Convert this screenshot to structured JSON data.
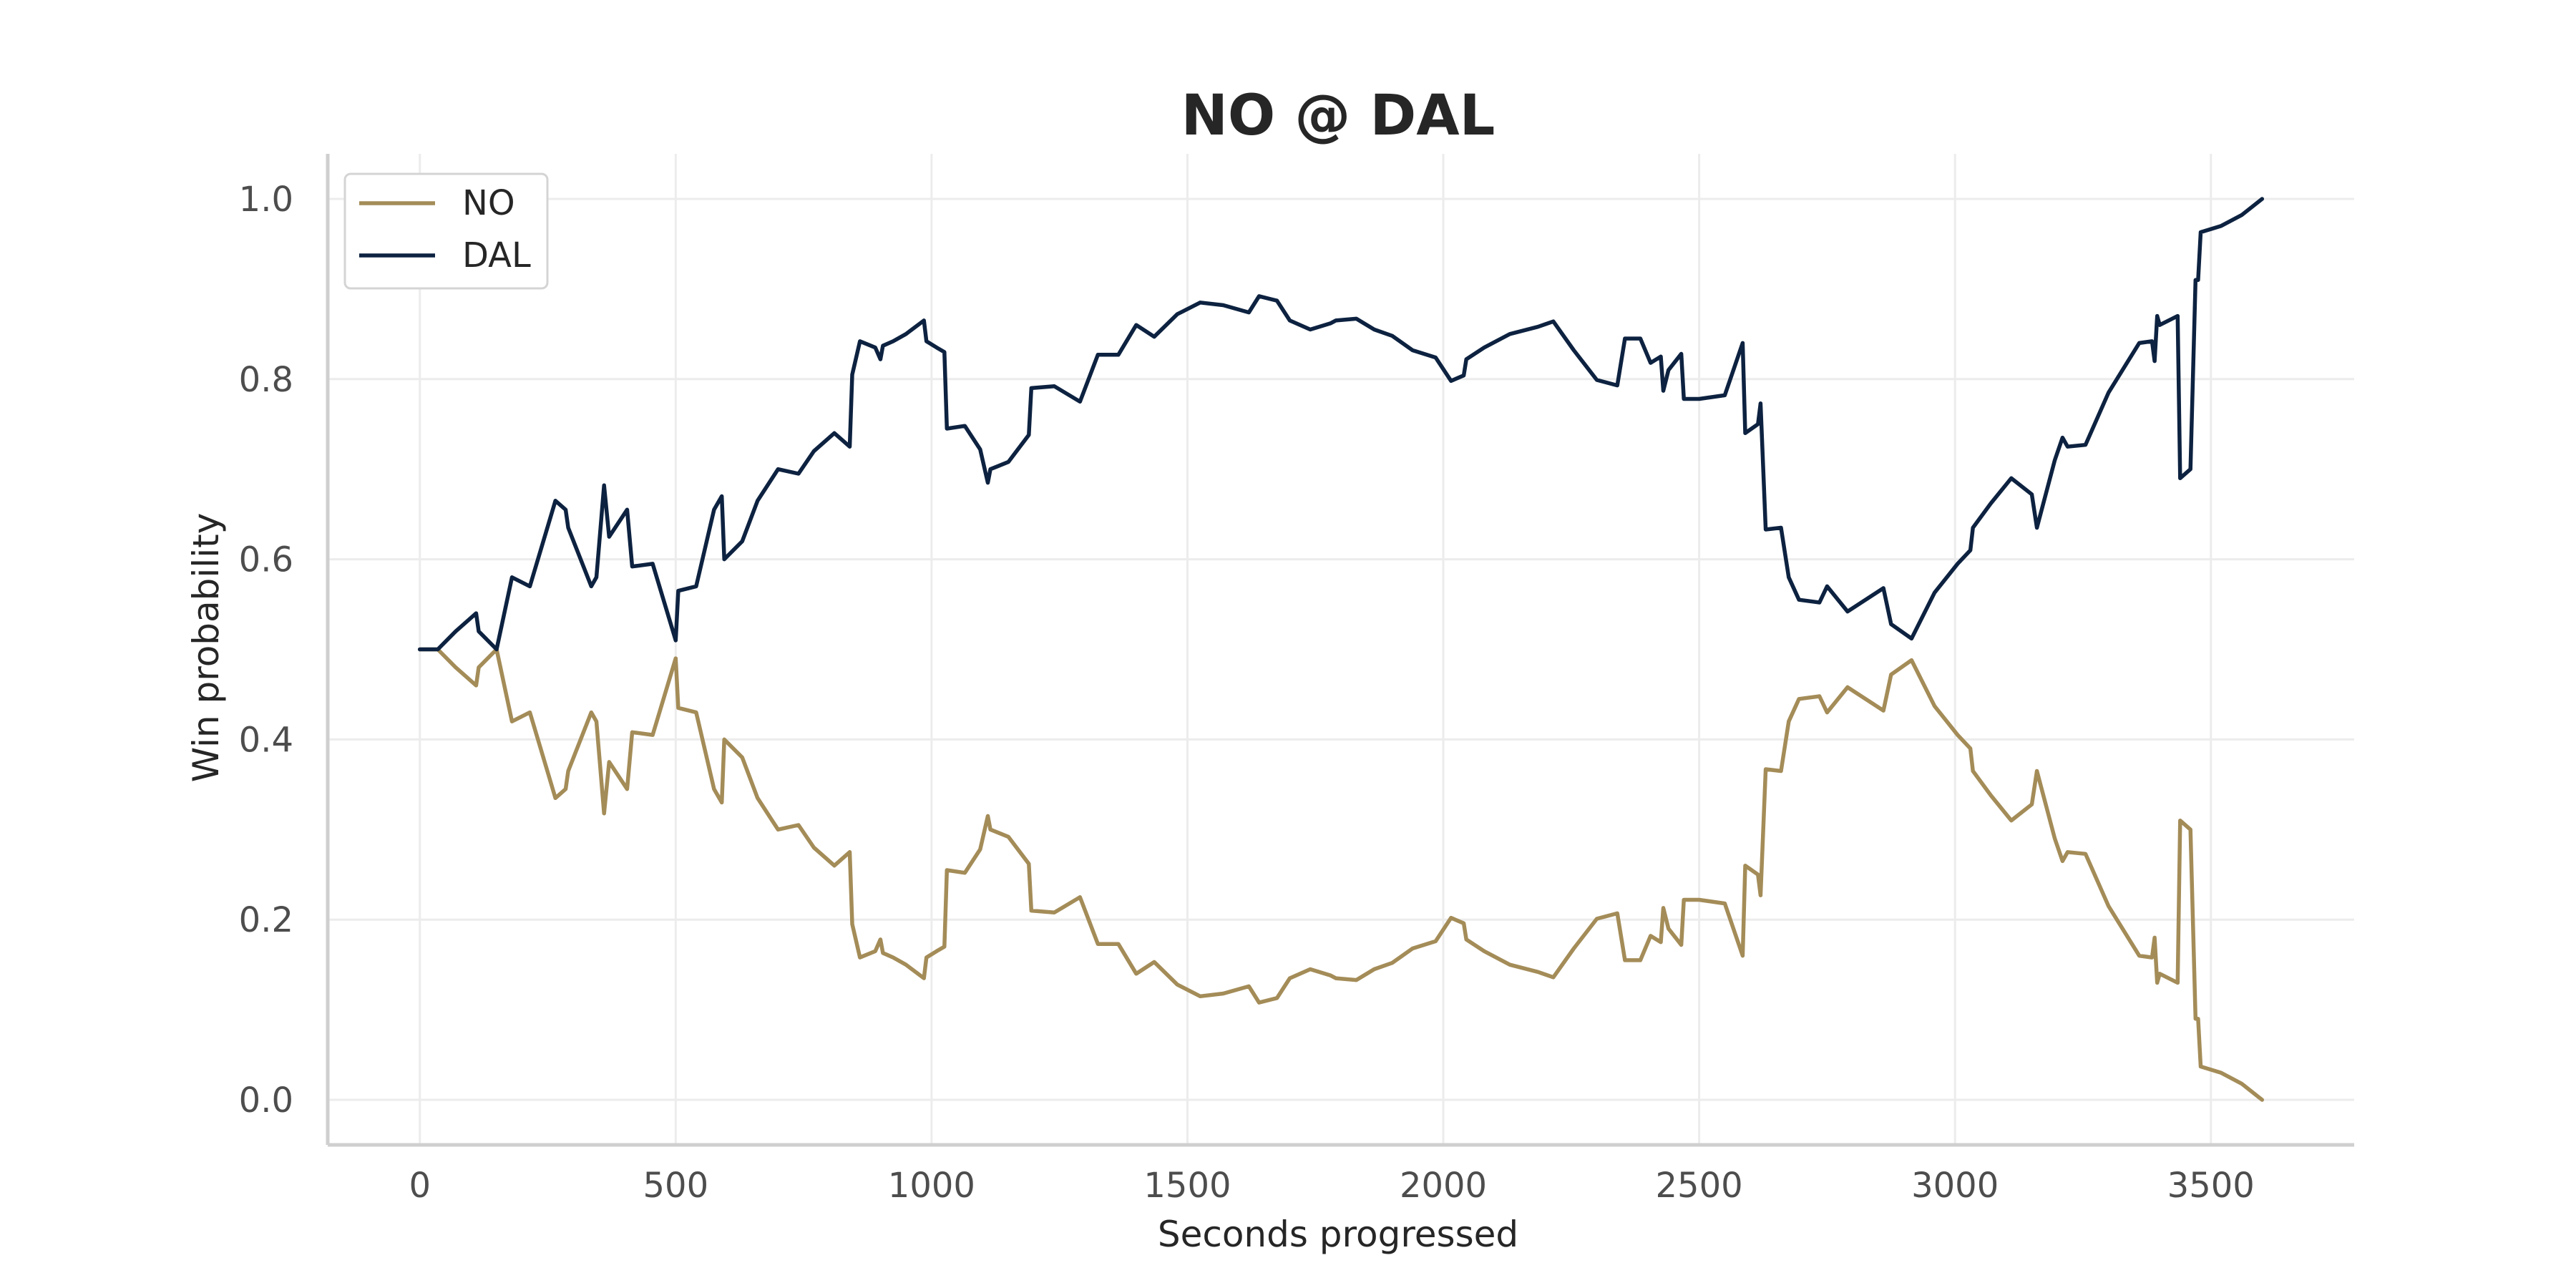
{
  "chart_data": {
    "type": "line",
    "title": "NO @ DAL",
    "xlabel": "Seconds progressed",
    "ylabel": "Win probability",
    "xlim": [
      -180,
      3780
    ],
    "ylim": [
      -0.05,
      1.05
    ],
    "xticks": [
      0,
      500,
      1000,
      1500,
      2000,
      2500,
      3000,
      3500
    ],
    "yticks": [
      0.0,
      0.2,
      0.4,
      0.6,
      0.8,
      1.0
    ],
    "xtick_labels": [
      "0",
      "500",
      "1000",
      "1500",
      "2000",
      "2500",
      "3000",
      "3500"
    ],
    "ytick_labels": [
      "0.0",
      "0.2",
      "0.4",
      "0.6",
      "0.8",
      "1.0"
    ],
    "grid": true,
    "legend_position": "top-left",
    "series": [
      {
        "name": "NO",
        "color": "#a48c58",
        "points": [
          [
            0,
            0.5
          ],
          [
            35,
            0.5
          ],
          [
            70,
            0.48
          ],
          [
            110,
            0.46
          ],
          [
            115,
            0.48
          ],
          [
            150,
            0.5
          ],
          [
            180,
            0.42
          ],
          [
            215,
            0.43
          ],
          [
            265,
            0.335
          ],
          [
            285,
            0.345
          ],
          [
            290,
            0.365
          ],
          [
            335,
            0.43
          ],
          [
            345,
            0.42
          ],
          [
            360,
            0.318
          ],
          [
            370,
            0.375
          ],
          [
            405,
            0.345
          ],
          [
            415,
            0.408
          ],
          [
            455,
            0.405
          ],
          [
            500,
            0.49
          ],
          [
            505,
            0.435
          ],
          [
            540,
            0.43
          ],
          [
            575,
            0.345
          ],
          [
            590,
            0.33
          ],
          [
            595,
            0.4
          ],
          [
            630,
            0.38
          ],
          [
            660,
            0.335
          ],
          [
            700,
            0.3
          ],
          [
            740,
            0.305
          ],
          [
            770,
            0.28
          ],
          [
            810,
            0.26
          ],
          [
            840,
            0.275
          ],
          [
            845,
            0.195
          ],
          [
            860,
            0.158
          ],
          [
            890,
            0.165
          ],
          [
            900,
            0.178
          ],
          [
            905,
            0.163
          ],
          [
            925,
            0.158
          ],
          [
            950,
            0.15
          ],
          [
            985,
            0.135
          ],
          [
            990,
            0.158
          ],
          [
            1010,
            0.165
          ],
          [
            1025,
            0.17
          ],
          [
            1030,
            0.255
          ],
          [
            1065,
            0.252
          ],
          [
            1095,
            0.278
          ],
          [
            1110,
            0.315
          ],
          [
            1115,
            0.3
          ],
          [
            1150,
            0.292
          ],
          [
            1190,
            0.262
          ],
          [
            1195,
            0.21
          ],
          [
            1240,
            0.208
          ],
          [
            1290,
            0.225
          ],
          [
            1325,
            0.173
          ],
          [
            1365,
            0.173
          ],
          [
            1400,
            0.14
          ],
          [
            1435,
            0.153
          ],
          [
            1480,
            0.128
          ],
          [
            1525,
            0.115
          ],
          [
            1570,
            0.118
          ],
          [
            1620,
            0.126
          ],
          [
            1640,
            0.108
          ],
          [
            1675,
            0.113
          ],
          [
            1700,
            0.135
          ],
          [
            1740,
            0.145
          ],
          [
            1780,
            0.138
          ],
          [
            1790,
            0.135
          ],
          [
            1830,
            0.133
          ],
          [
            1865,
            0.145
          ],
          [
            1900,
            0.152
          ],
          [
            1940,
            0.168
          ],
          [
            1985,
            0.176
          ],
          [
            2015,
            0.202
          ],
          [
            2040,
            0.196
          ],
          [
            2045,
            0.178
          ],
          [
            2080,
            0.165
          ],
          [
            2130,
            0.15
          ],
          [
            2185,
            0.142
          ],
          [
            2215,
            0.136
          ],
          [
            2255,
            0.168
          ],
          [
            2300,
            0.201
          ],
          [
            2340,
            0.207
          ],
          [
            2355,
            0.155
          ],
          [
            2385,
            0.155
          ],
          [
            2405,
            0.182
          ],
          [
            2425,
            0.175
          ],
          [
            2430,
            0.213
          ],
          [
            2440,
            0.19
          ],
          [
            2465,
            0.172
          ],
          [
            2470,
            0.222
          ],
          [
            2500,
            0.222
          ],
          [
            2550,
            0.218
          ],
          [
            2585,
            0.16
          ],
          [
            2590,
            0.26
          ],
          [
            2615,
            0.25
          ],
          [
            2620,
            0.227
          ],
          [
            2630,
            0.367
          ],
          [
            2660,
            0.365
          ],
          [
            2675,
            0.42
          ],
          [
            2695,
            0.445
          ],
          [
            2735,
            0.448
          ],
          [
            2750,
            0.43
          ],
          [
            2790,
            0.458
          ],
          [
            2860,
            0.432
          ],
          [
            2875,
            0.472
          ],
          [
            2915,
            0.488
          ],
          [
            2960,
            0.437
          ],
          [
            3005,
            0.405
          ],
          [
            3030,
            0.39
          ],
          [
            3035,
            0.365
          ],
          [
            3070,
            0.338
          ],
          [
            3110,
            0.31
          ],
          [
            3150,
            0.328
          ],
          [
            3160,
            0.365
          ],
          [
            3195,
            0.29
          ],
          [
            3210,
            0.265
          ],
          [
            3220,
            0.275
          ],
          [
            3255,
            0.273
          ],
          [
            3300,
            0.215
          ],
          [
            3360,
            0.16
          ],
          [
            3385,
            0.158
          ],
          [
            3390,
            0.18
          ],
          [
            3395,
            0.13
          ],
          [
            3400,
            0.14
          ],
          [
            3435,
            0.13
          ],
          [
            3440,
            0.31
          ],
          [
            3460,
            0.3
          ],
          [
            3470,
            0.09
          ],
          [
            3475,
            0.09
          ],
          [
            3480,
            0.037
          ],
          [
            3520,
            0.03
          ],
          [
            3560,
            0.018
          ],
          [
            3600,
            0.0
          ]
        ]
      },
      {
        "name": "DAL",
        "color": "#0d2240",
        "points": [
          [
            0,
            0.5
          ],
          [
            35,
            0.5
          ],
          [
            70,
            0.52
          ],
          [
            110,
            0.54
          ],
          [
            115,
            0.52
          ],
          [
            150,
            0.5
          ],
          [
            180,
            0.58
          ],
          [
            215,
            0.57
          ],
          [
            265,
            0.665
          ],
          [
            285,
            0.655
          ],
          [
            290,
            0.635
          ],
          [
            335,
            0.57
          ],
          [
            345,
            0.58
          ],
          [
            360,
            0.682
          ],
          [
            370,
            0.625
          ],
          [
            405,
            0.655
          ],
          [
            415,
            0.592
          ],
          [
            455,
            0.595
          ],
          [
            500,
            0.51
          ],
          [
            505,
            0.565
          ],
          [
            540,
            0.57
          ],
          [
            575,
            0.655
          ],
          [
            590,
            0.67
          ],
          [
            595,
            0.6
          ],
          [
            630,
            0.62
          ],
          [
            660,
            0.665
          ],
          [
            700,
            0.7
          ],
          [
            740,
            0.695
          ],
          [
            770,
            0.72
          ],
          [
            810,
            0.74
          ],
          [
            840,
            0.725
          ],
          [
            845,
            0.805
          ],
          [
            860,
            0.842
          ],
          [
            890,
            0.835
          ],
          [
            900,
            0.822
          ],
          [
            905,
            0.837
          ],
          [
            925,
            0.842
          ],
          [
            950,
            0.85
          ],
          [
            985,
            0.865
          ],
          [
            990,
            0.842
          ],
          [
            1010,
            0.835
          ],
          [
            1025,
            0.83
          ],
          [
            1030,
            0.745
          ],
          [
            1065,
            0.748
          ],
          [
            1095,
            0.722
          ],
          [
            1110,
            0.685
          ],
          [
            1115,
            0.7
          ],
          [
            1150,
            0.708
          ],
          [
            1190,
            0.738
          ],
          [
            1195,
            0.79
          ],
          [
            1240,
            0.792
          ],
          [
            1290,
            0.775
          ],
          [
            1325,
            0.827
          ],
          [
            1365,
            0.827
          ],
          [
            1400,
            0.86
          ],
          [
            1435,
            0.847
          ],
          [
            1480,
            0.872
          ],
          [
            1525,
            0.885
          ],
          [
            1570,
            0.882
          ],
          [
            1620,
            0.874
          ],
          [
            1640,
            0.892
          ],
          [
            1675,
            0.887
          ],
          [
            1700,
            0.865
          ],
          [
            1740,
            0.855
          ],
          [
            1780,
            0.862
          ],
          [
            1790,
            0.865
          ],
          [
            1830,
            0.867
          ],
          [
            1865,
            0.855
          ],
          [
            1900,
            0.848
          ],
          [
            1940,
            0.832
          ],
          [
            1985,
            0.824
          ],
          [
            2015,
            0.798
          ],
          [
            2040,
            0.804
          ],
          [
            2045,
            0.822
          ],
          [
            2080,
            0.835
          ],
          [
            2130,
            0.85
          ],
          [
            2185,
            0.858
          ],
          [
            2215,
            0.864
          ],
          [
            2255,
            0.832
          ],
          [
            2300,
            0.799
          ],
          [
            2340,
            0.793
          ],
          [
            2355,
            0.845
          ],
          [
            2385,
            0.845
          ],
          [
            2405,
            0.818
          ],
          [
            2425,
            0.825
          ],
          [
            2430,
            0.787
          ],
          [
            2440,
            0.81
          ],
          [
            2465,
            0.828
          ],
          [
            2470,
            0.778
          ],
          [
            2500,
            0.778
          ],
          [
            2550,
            0.782
          ],
          [
            2585,
            0.84
          ],
          [
            2590,
            0.74
          ],
          [
            2615,
            0.75
          ],
          [
            2620,
            0.773
          ],
          [
            2630,
            0.633
          ],
          [
            2660,
            0.635
          ],
          [
            2675,
            0.58
          ],
          [
            2695,
            0.555
          ],
          [
            2735,
            0.552
          ],
          [
            2750,
            0.57
          ],
          [
            2790,
            0.542
          ],
          [
            2860,
            0.568
          ],
          [
            2875,
            0.528
          ],
          [
            2915,
            0.512
          ],
          [
            2960,
            0.563
          ],
          [
            3005,
            0.595
          ],
          [
            3030,
            0.61
          ],
          [
            3035,
            0.635
          ],
          [
            3070,
            0.662
          ],
          [
            3110,
            0.69
          ],
          [
            3150,
            0.672
          ],
          [
            3160,
            0.635
          ],
          [
            3195,
            0.71
          ],
          [
            3210,
            0.735
          ],
          [
            3220,
            0.725
          ],
          [
            3255,
            0.727
          ],
          [
            3300,
            0.785
          ],
          [
            3360,
            0.84
          ],
          [
            3385,
            0.842
          ],
          [
            3390,
            0.82
          ],
          [
            3395,
            0.87
          ],
          [
            3400,
            0.86
          ],
          [
            3435,
            0.87
          ],
          [
            3440,
            0.69
          ],
          [
            3460,
            0.7
          ],
          [
            3470,
            0.91
          ],
          [
            3475,
            0.91
          ],
          [
            3480,
            0.963
          ],
          [
            3520,
            0.97
          ],
          [
            3560,
            0.982
          ],
          [
            3600,
            1.0
          ]
        ]
      }
    ]
  }
}
